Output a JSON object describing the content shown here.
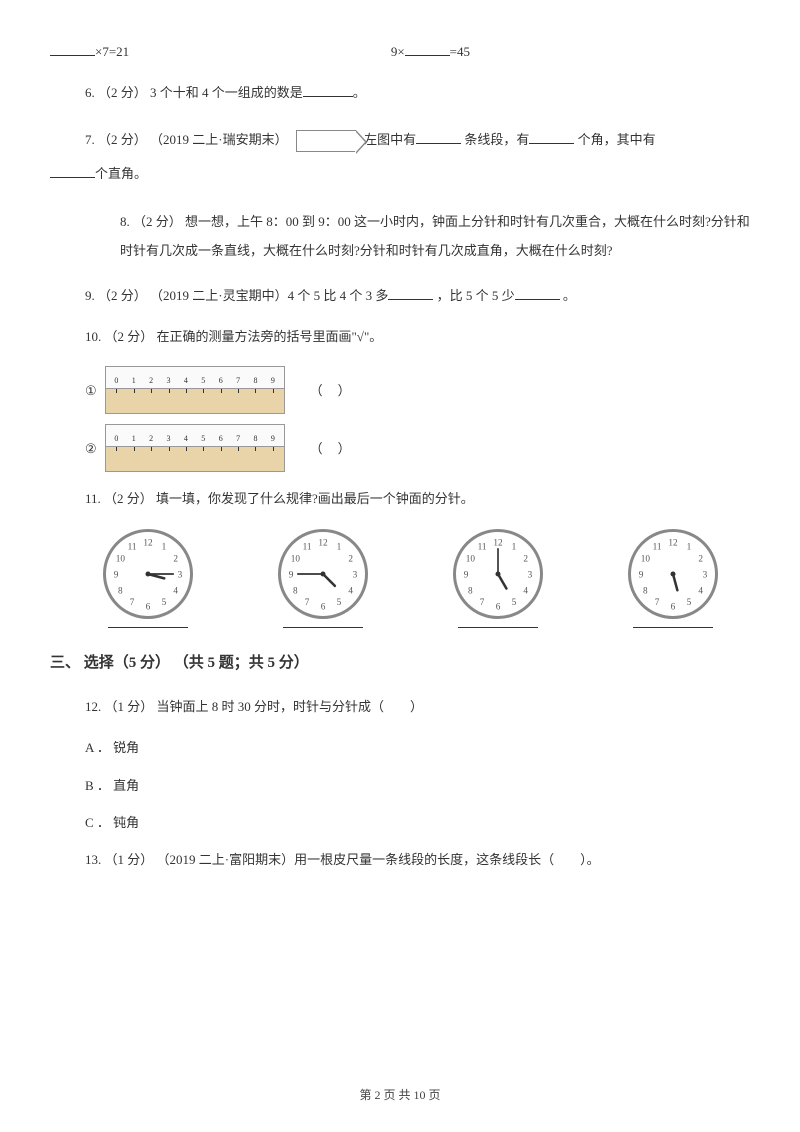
{
  "topEq1_left": "×7=21",
  "topEq2_left": "9×",
  "topEq2_right": "=45",
  "q6": "6. （2 分） 3 个十和 4 个一组成的数是",
  "q6_end": "。",
  "q7_a": "7. （2 分） （2019 二上·瑞安期末）",
  "q7_b": "左图中有",
  "q7_c": "条线段，有",
  "q7_d": "个角，其中有",
  "q7_e": "个直角。",
  "q8": "8. （2 分） 想一想，上午 8：00 到 9：00 这一小时内，钟面上分针和时针有几次重合，大概在什么时刻?分针和时针有几次成一条直线，大概在什么时刻?分针和时针有几次成直角，大概在什么时刻?",
  "q9_a": "9. （2 分） （2019 二上·灵宝期中）4 个 5 比 4 个 3 多",
  "q9_b": "，比 5 个 5 少",
  "q9_c": "。",
  "q10": "10. （2 分） 在正确的测量方法旁的括号里面画\"√\"。",
  "ruler1_label": "①",
  "ruler2_label": "②",
  "parens": "（）",
  "q11": "11. （2 分） 填一填，你发现了什么规律?画出最后一个钟面的分针。",
  "section3": "三、 选择（5 分） （共 5 题；共 5 分）",
  "q12": "12. （1 分） 当钟面上 8 时 30 分时，时针与分针成（　　）",
  "opt_a": "A ． 锐角",
  "opt_b": "B ． 直角",
  "opt_c": "C ． 钝角",
  "q13": "13. （1 分） （2019 二上·富阳期末）用一根皮尺量一条线段的长度，这条线段长（　　）。",
  "footer": "第 2 页 共 10 页",
  "ruler_nums": [
    "0",
    "1",
    "2",
    "3",
    "4",
    "5",
    "6",
    "7",
    "8",
    "9"
  ],
  "clocks": [
    {
      "hour_angle": 105,
      "min_angle": 90
    },
    {
      "hour_angle": 135,
      "min_angle": 270
    },
    {
      "hour_angle": 150,
      "min_angle": 0
    },
    {
      "hour_angle": 165,
      "min_angle": null
    }
  ],
  "clock_numbers": [
    "12",
    "1",
    "2",
    "3",
    "4",
    "5",
    "6",
    "7",
    "8",
    "9",
    "10",
    "11"
  ],
  "colors": {
    "text": "#333333",
    "border": "#888888",
    "ruler_top": "#fafafa",
    "ruler_wood": "#e8d4a8"
  }
}
